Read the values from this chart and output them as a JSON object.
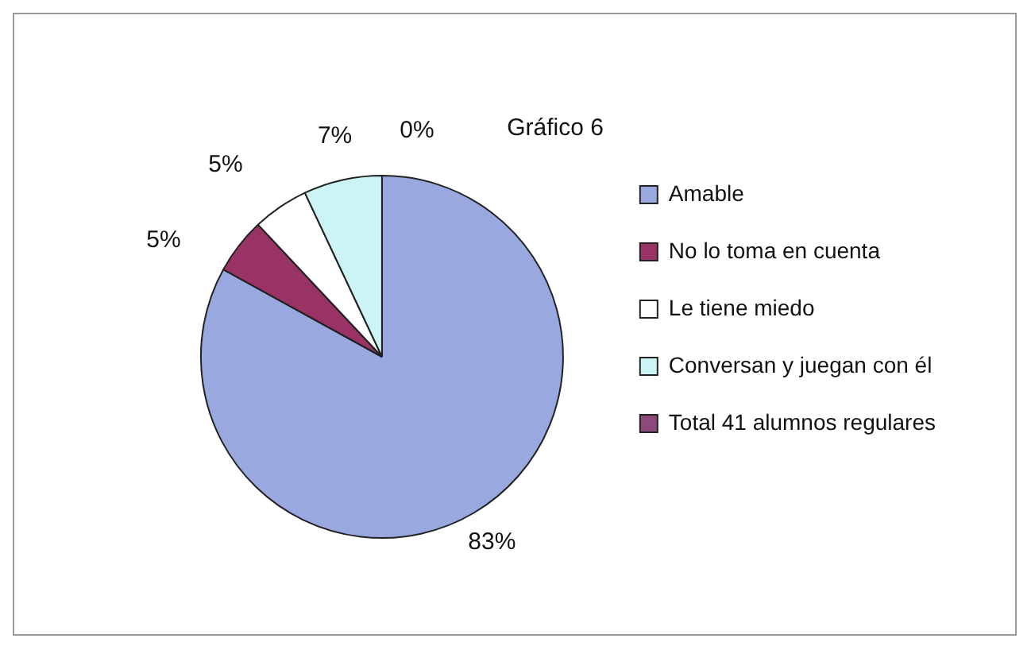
{
  "chart_data": {
    "type": "pie",
    "title": "Gráfico 6",
    "categories": [
      "Amable",
      "No lo toma en cuenta",
      "Le tiene miedo",
      "Conversan y juegan con él",
      "Total 41 alumnos regulares"
    ],
    "values": [
      83,
      5,
      5,
      7,
      0
    ],
    "colors": [
      "#9aa8e0",
      "#993366",
      "#ffffff",
      "#ccf4f4",
      "#8b4a7a"
    ],
    "value_labels": [
      "83%",
      "5%",
      "5%",
      "7%",
      "0%"
    ],
    "legend": "right"
  }
}
